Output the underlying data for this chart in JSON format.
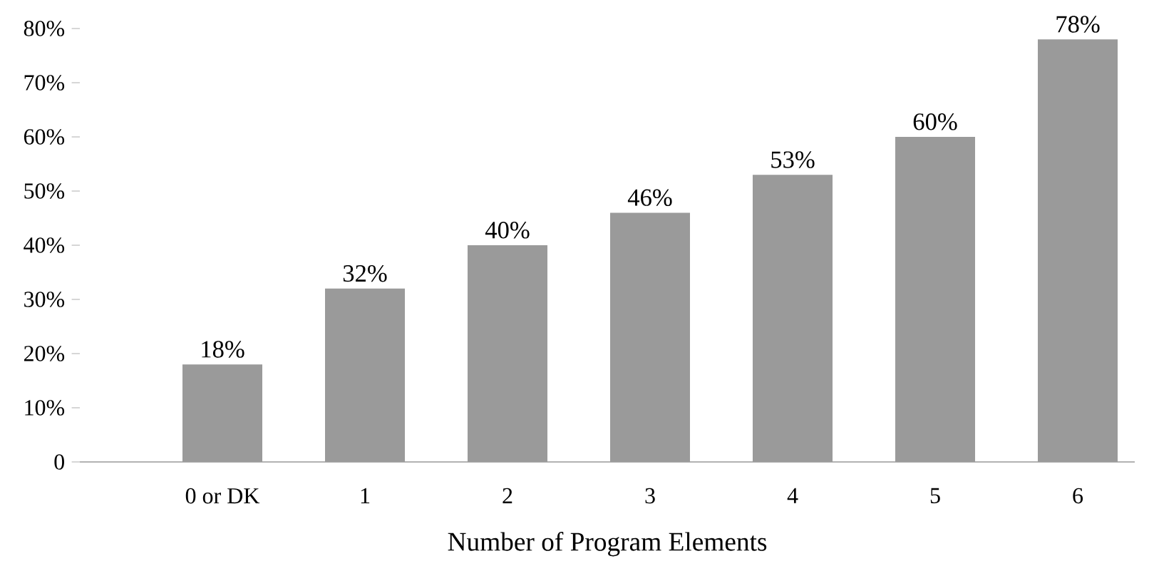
{
  "chart_data": {
    "type": "bar",
    "xlabel": "Number of Program Elements",
    "categories": [
      "0 or DK",
      "1",
      "2",
      "3",
      "4",
      "5",
      "6"
    ],
    "values": [
      18,
      32,
      40,
      46,
      53,
      60,
      78
    ],
    "color": "#9a9a9a",
    "data_labels": true,
    "value_labels": [
      "18%",
      "32%",
      "40%",
      "46%",
      "53%",
      "60%",
      "78%"
    ],
    "ylim": [
      0,
      80
    ],
    "yticks": [
      0,
      {
        "value": 10,
        "label": "10%"
      },
      {
        "value": 20,
        "label": "20%"
      },
      {
        "value": 30,
        "label": "30%"
      },
      {
        "value": 40,
        "label": "40%"
      },
      {
        "value": 50,
        "label": "50%"
      },
      {
        "value": 60,
        "label": "60%"
      },
      {
        "value": 70,
        "label": "70%"
      },
      {
        "value": 80,
        "label": "80%"
      }
    ],
    "grid": false
  }
}
